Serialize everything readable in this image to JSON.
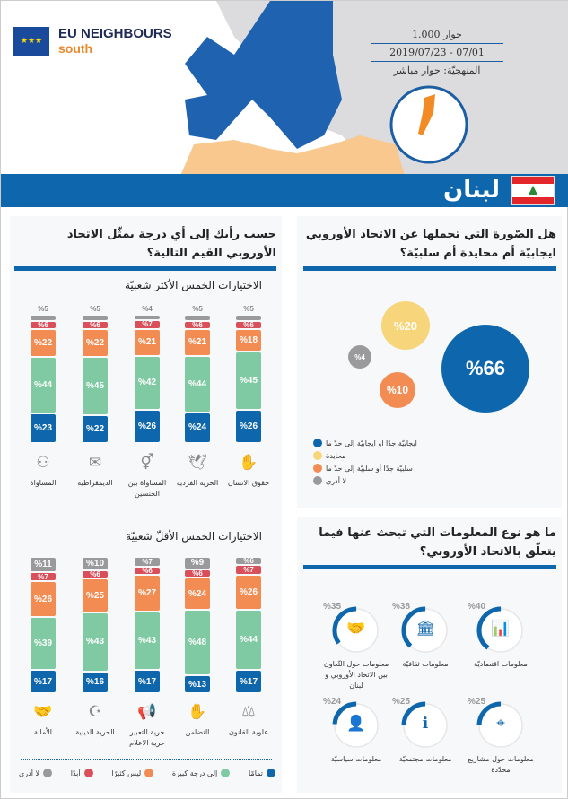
{
  "header": {
    "brand_line1": "EU NEIGHBOURS",
    "brand_line2": "south",
    "interviews": "1.000 حوار",
    "dates": "2019/07/23 - 07/01",
    "methodology": "المنهجيّة: حوار مباشر",
    "country": "لبنان"
  },
  "colors": {
    "blue": "#0e67ac",
    "green": "#7fc9a3",
    "orange": "#f28c52",
    "red": "#d9505a",
    "gray": "#9a9a9c",
    "yellow": "#f7d57a"
  },
  "values_question": {
    "title": "حسب رأيك إلى أي درجة يمثّل الاتحاد الأوروبي القيم التالية؟",
    "top_subtitle": "الاختيارات الخمس الأكثر شعبيّة",
    "bottom_subtitle": "الاختيارات الخمس الأقلّ شعبيّة",
    "legend": [
      {
        "label": "لا أدري",
        "color": "#9a9a9c"
      },
      {
        "label": "أبدًا",
        "color": "#d9505a"
      },
      {
        "label": "ليس كثيرًا",
        "color": "#f28c52"
      },
      {
        "label": "إلى درجة كبيرة",
        "color": "#7fc9a3"
      },
      {
        "label": "تمامًا",
        "color": "#0e67ac"
      }
    ]
  },
  "chart_data": [
    {
      "type": "bar",
      "stacked": true,
      "title": "الاختيارات الخمس الأكثر شعبيّة",
      "series_order": [
        "تمامًا",
        "إلى درجة كبيرة",
        "ليس كثيرًا",
        "أبدًا",
        "لا أدري"
      ],
      "categories": [
        {
          "label": "المساواة",
          "icon": "people-equal-icon",
          "values": [
            23,
            44,
            22,
            6,
            5
          ]
        },
        {
          "label": "الديمقراطية",
          "icon": "ballot-box-icon",
          "values": [
            22,
            45,
            22,
            6,
            5
          ]
        },
        {
          "label": "المساواة بين الجنسين",
          "icon": "gender-icon",
          "values": [
            26,
            42,
            21,
            7,
            4
          ]
        },
        {
          "label": "الحرية الفردية",
          "icon": "dove-icon",
          "values": [
            24,
            44,
            21,
            6,
            5
          ]
        },
        {
          "label": "حقوق الانسان",
          "icon": "raised-hands-icon",
          "values": [
            26,
            45,
            18,
            6,
            5
          ]
        }
      ]
    },
    {
      "type": "bar",
      "stacked": true,
      "title": "الاختيارات الخمس الأقلّ شعبيّة",
      "series_order": [
        "تمامًا",
        "إلى درجة كبيرة",
        "ليس كثيرًا",
        "أبدًا",
        "لا أدري"
      ],
      "categories": [
        {
          "label": "الأمانة",
          "icon": "handshake-icon",
          "values": [
            17,
            39,
            26,
            7,
            11
          ]
        },
        {
          "label": "الحرية الدينية",
          "icon": "religion-icon",
          "values": [
            16,
            43,
            25,
            6,
            10
          ]
        },
        {
          "label": "حرية التعبير حرية الاعلام",
          "icon": "megaphone-icon",
          "values": [
            17,
            43,
            27,
            6,
            7
          ]
        },
        {
          "label": "التضامن",
          "icon": "hands-icon",
          "values": [
            13,
            48,
            24,
            6,
            9
          ]
        },
        {
          "label": "علوية القانون",
          "icon": "gavel-icon",
          "values": [
            17,
            44,
            26,
            7,
            6
          ]
        }
      ]
    },
    {
      "type": "bubble",
      "title": "هل الصّورة التي تحملها عن الاتحاد الأوروبي ايجابيّة أم محايدة أم سلبيّة؟",
      "items": [
        {
          "label": "ايجابيّة جدًا او ايجابيّة إلى حدّ ما",
          "value": 66,
          "text": "%66",
          "color": "#0e67ac"
        },
        {
          "label": "محايدة",
          "value": 20,
          "text": "%20",
          "color": "#f7d57a"
        },
        {
          "label": "سلبيّة جدًا أو سلبيّة إلى حدّ ما",
          "value": 10,
          "text": "%10",
          "color": "#f28c52"
        },
        {
          "label": "لا أدري",
          "value": 4,
          "text": "%4",
          "color": "#9a9a9c"
        }
      ]
    },
    {
      "type": "radial",
      "title": "ما هو نوع المعلومات التي تبحث عنها فيما يتعلّق بالاتحاد الأوروبي؟",
      "items": [
        {
          "label": "معلومات حول التّعاون بين الاتحاد الأوروبي و لبنان",
          "value": 35,
          "text": "%35",
          "icon": "handshake-icon"
        },
        {
          "label": "معلومات ثقافيّة",
          "value": 38,
          "text": "%38",
          "icon": "museum-icon"
        },
        {
          "label": "معلومات اقتصاديّة",
          "value": 40,
          "text": "%40",
          "icon": "bar-chart-icon"
        },
        {
          "label": "معلومات سياسيّة",
          "value": 24,
          "text": "%24",
          "icon": "person-icon"
        },
        {
          "label": "معلومات مجتمعيّة",
          "value": 25,
          "text": "%25",
          "icon": "info-icon"
        },
        {
          "label": "معلومات حول مشاريع محدّدة",
          "value": 25,
          "text": "%25",
          "icon": "target-icon"
        }
      ]
    }
  ]
}
